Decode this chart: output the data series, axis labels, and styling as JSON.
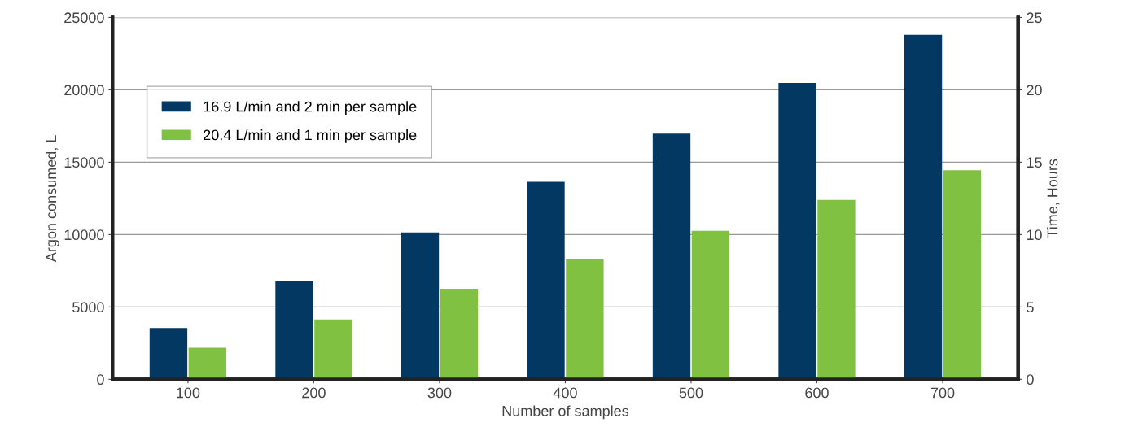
{
  "chart_data": {
    "type": "bar",
    "xlabel": "Number of samples",
    "ylabel": "Argon consumed, L",
    "y2label": "Time, Hours",
    "categories": [
      "100",
      "200",
      "300",
      "400",
      "500",
      "600",
      "700"
    ],
    "series": [
      {
        "name": "16.9 L/min and 2 min per sample",
        "color": "#023861",
        "values": [
          3550,
          6770,
          10150,
          13650,
          16970,
          20470,
          23800
        ]
      },
      {
        "name": "20.4 L/min and 1 min per sample",
        "color": "#80c141",
        "values": [
          2180,
          4130,
          6250,
          8310,
          10260,
          12390,
          14450
        ]
      }
    ],
    "ylim": [
      0,
      25000
    ],
    "yticks": [
      0,
      5000,
      10000,
      15000,
      20000,
      25000
    ],
    "y2lim": [
      0,
      25
    ],
    "y2ticks": [
      0,
      5,
      10,
      15,
      20,
      25
    ],
    "grid": "y",
    "legend": "top left"
  }
}
